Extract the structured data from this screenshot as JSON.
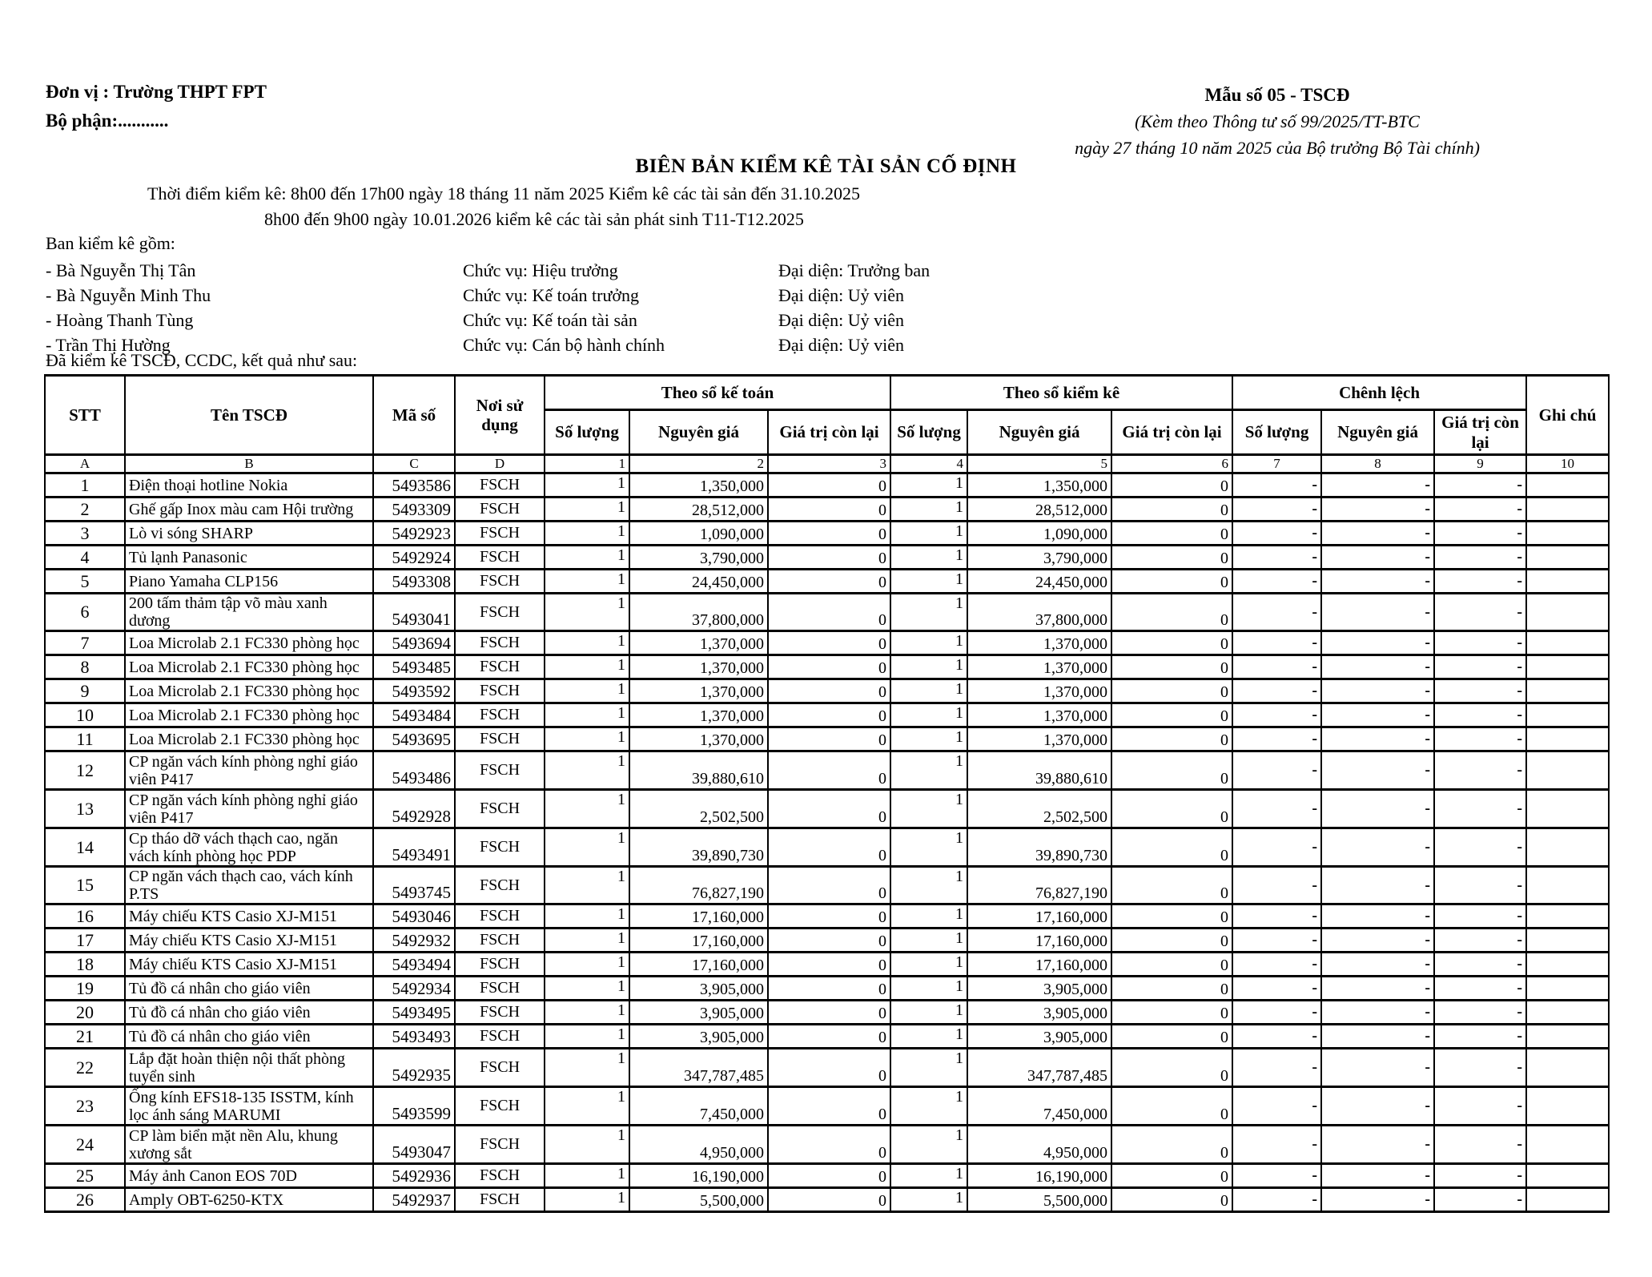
{
  "page": {
    "unit_label": "Đơn vị : Trường THPT FPT",
    "department_label": "Bộ phận:...........",
    "form_block": {
      "line1": "Mẫu số 05 - TSCĐ",
      "line2": "(Kèm theo Thông tư số 99/2025/TT-BTC",
      "line3": "ngày 27 tháng 10 năm 2025 của Bộ trưởng Bộ Tài chính)"
    },
    "title": "BIÊN BẢN KIỂM KÊ TÀI SẢN CỐ ĐỊNH",
    "time_line1": "Thời điểm kiểm kê: 8h00 đến 17h00 ngày 18 tháng 11 năm 2025 Kiểm kê các tài sản đến 31.10.2025",
    "time_line2": "8h00 đến 9h00 ngày 10.01.2026 kiểm kê các tài sản phát sinh T11-T12.2025",
    "committee_intro": "Ban kiểm kê gồm:",
    "committee": [
      {
        "name": "- Bà Nguyễn Thị Tân",
        "position": "Chức vụ: Hiệu trưởng",
        "role": "Đại diện: Trưởng ban"
      },
      {
        "name": "- Bà Nguyễn Minh Thu",
        "position": "Chức vụ: Kế toán trưởng",
        "role": "Đại diện: Uỷ viên"
      },
      {
        "name": "- Hoàng Thanh Tùng",
        "position": "Chức vụ: Kế toán tài sản",
        "role": "Đại diện: Uỷ viên"
      },
      {
        "name": "- Trần Thị Hường",
        "position": "Chức vụ: Cán bộ hành chính",
        "role": "Đại diện: Uỷ viên"
      }
    ],
    "result_intro": "Đã kiểm kê TSCĐ, CCDC, kết quả như sau:"
  },
  "table": {
    "headers": {
      "stt": "STT",
      "asset_name": "Tên TSCĐ",
      "code": "Mã số",
      "location": "Nơi sử dụng",
      "group_accounting": "Theo sổ kế toán",
      "group_inventory": "Theo sổ kiểm kê",
      "group_difference": "Chênh lệch",
      "quantity": "Số lượng",
      "original_cost": "Nguyên giá",
      "residual_value": "Giá trị còn lại",
      "residual_value_inv": "Giá trị  còn lại",
      "residual_value_diff": "Giá trị còn lại",
      "note": "Ghi chú"
    },
    "letter_row": [
      "A",
      "B",
      "C",
      "D",
      "1",
      "2",
      "3",
      "4",
      "5",
      "6",
      "7",
      "8",
      "9",
      "10"
    ],
    "rows": [
      {
        "stt": "1",
        "name": "Điện thoại hotline Nokia",
        "code": "5493586",
        "location": "FSCH",
        "acc_qty": "1",
        "acc_cost": "1,350,000",
        "acc_residual": "0",
        "inv_qty": "1",
        "inv_cost": "1,350,000",
        "inv_residual": "0",
        "diff_qty": "-",
        "diff_cost": "-",
        "diff_residual": "-",
        "note": "",
        "tall": false
      },
      {
        "stt": "2",
        "name": "Ghế gấp Inox màu cam Hội trường",
        "code": "5493309",
        "location": "FSCH",
        "acc_qty": "1",
        "acc_cost": "28,512,000",
        "acc_residual": "0",
        "inv_qty": "1",
        "inv_cost": "28,512,000",
        "inv_residual": "0",
        "diff_qty": "-",
        "diff_cost": "-",
        "diff_residual": "-",
        "note": "",
        "tall": false
      },
      {
        "stt": "3",
        "name": "Lò vi sóng SHARP",
        "code": "5492923",
        "location": "FSCH",
        "acc_qty": "1",
        "acc_cost": "1,090,000",
        "acc_residual": "0",
        "inv_qty": "1",
        "inv_cost": "1,090,000",
        "inv_residual": "0",
        "diff_qty": "-",
        "diff_cost": "-",
        "diff_residual": "-",
        "note": "",
        "tall": false
      },
      {
        "stt": "4",
        "name": "Tủ lạnh Panasonic",
        "code": "5492924",
        "location": "FSCH",
        "acc_qty": "1",
        "acc_cost": "3,790,000",
        "acc_residual": "0",
        "inv_qty": "1",
        "inv_cost": "3,790,000",
        "inv_residual": "0",
        "diff_qty": "-",
        "diff_cost": "-",
        "diff_residual": "-",
        "note": "",
        "tall": false
      },
      {
        "stt": "5",
        "name": "Piano Yamaha CLP156",
        "code": "5493308",
        "location": "FSCH",
        "acc_qty": "1",
        "acc_cost": "24,450,000",
        "acc_residual": "0",
        "inv_qty": "1",
        "inv_cost": "24,450,000",
        "inv_residual": "0",
        "diff_qty": "-",
        "diff_cost": "-",
        "diff_residual": "-",
        "note": "",
        "tall": false
      },
      {
        "stt": "6",
        "name": "200 tấm thảm tập võ màu xanh dương",
        "code": "5493041",
        "location": "FSCH",
        "acc_qty": "1",
        "acc_cost": "37,800,000",
        "acc_residual": "0",
        "inv_qty": "1",
        "inv_cost": "37,800,000",
        "inv_residual": "0",
        "diff_qty": "-",
        "diff_cost": "-",
        "diff_residual": "-",
        "note": "",
        "tall": false
      },
      {
        "stt": "7",
        "name": "Loa Microlab 2.1 FC330 phòng học",
        "code": "5493694",
        "location": "FSCH",
        "acc_qty": "1",
        "acc_cost": "1,370,000",
        "acc_residual": "0",
        "inv_qty": "1",
        "inv_cost": "1,370,000",
        "inv_residual": "0",
        "diff_qty": "-",
        "diff_cost": "-",
        "diff_residual": "-",
        "note": "",
        "tall": false
      },
      {
        "stt": "8",
        "name": "Loa Microlab 2.1 FC330 phòng học",
        "code": "5493485",
        "location": "FSCH",
        "acc_qty": "1",
        "acc_cost": "1,370,000",
        "acc_residual": "0",
        "inv_qty": "1",
        "inv_cost": "1,370,000",
        "inv_residual": "0",
        "diff_qty": "-",
        "diff_cost": "-",
        "diff_residual": "-",
        "note": "",
        "tall": false
      },
      {
        "stt": "9",
        "name": "Loa Microlab 2.1 FC330 phòng học",
        "code": "5493592",
        "location": "FSCH",
        "acc_qty": "1",
        "acc_cost": "1,370,000",
        "acc_residual": "0",
        "inv_qty": "1",
        "inv_cost": "1,370,000",
        "inv_residual": "0",
        "diff_qty": "-",
        "diff_cost": "-",
        "diff_residual": "-",
        "note": "",
        "tall": false
      },
      {
        "stt": "10",
        "name": "Loa Microlab 2.1 FC330 phòng học",
        "code": "5493484",
        "location": "FSCH",
        "acc_qty": "1",
        "acc_cost": "1,370,000",
        "acc_residual": "0",
        "inv_qty": "1",
        "inv_cost": "1,370,000",
        "inv_residual": "0",
        "diff_qty": "-",
        "diff_cost": "-",
        "diff_residual": "-",
        "note": "",
        "tall": false
      },
      {
        "stt": "11",
        "name": "Loa Microlab 2.1 FC330 phòng học",
        "code": "5493695",
        "location": "FSCH",
        "acc_qty": "1",
        "acc_cost": "1,370,000",
        "acc_residual": "0",
        "inv_qty": "1",
        "inv_cost": "1,370,000",
        "inv_residual": "0",
        "diff_qty": "-",
        "diff_cost": "-",
        "diff_residual": "-",
        "note": "",
        "tall": false
      },
      {
        "stt": "12",
        "name": "CP ngăn vách kính phòng nghỉ giáo viên P417",
        "code": "5493486",
        "location": "FSCH",
        "acc_qty": "1",
        "acc_cost": "39,880,610",
        "acc_residual": "0",
        "inv_qty": "1",
        "inv_cost": "39,880,610",
        "inv_residual": "0",
        "diff_qty": "-",
        "diff_cost": "-",
        "diff_residual": "-",
        "note": "",
        "tall": true
      },
      {
        "stt": "13",
        "name": "CP ngăn vách kính phòng nghỉ giáo viên P417",
        "code": "5492928",
        "location": "FSCH",
        "acc_qty": "1",
        "acc_cost": "2,502,500",
        "acc_residual": "0",
        "inv_qty": "1",
        "inv_cost": "2,502,500",
        "inv_residual": "0",
        "diff_qty": "-",
        "diff_cost": "-",
        "diff_residual": "-",
        "note": "",
        "tall": true
      },
      {
        "stt": "14",
        "name": "Cp tháo dỡ vách thạch cao, ngăn vách kính phòng học PDP",
        "code": "5493491",
        "location": "FSCH",
        "acc_qty": "1",
        "acc_cost": "39,890,730",
        "acc_residual": "0",
        "inv_qty": "1",
        "inv_cost": "39,890,730",
        "inv_residual": "0",
        "diff_qty": "-",
        "diff_cost": "-",
        "diff_residual": "-",
        "note": "",
        "tall": true
      },
      {
        "stt": "15",
        "name": "CP ngăn vách thạch cao, vách kính P.TS",
        "code": "5493745",
        "location": "FSCH",
        "acc_qty": "1",
        "acc_cost": "76,827,190",
        "acc_residual": "0",
        "inv_qty": "1",
        "inv_cost": "76,827,190",
        "inv_residual": "0",
        "diff_qty": "-",
        "diff_cost": "-",
        "diff_residual": "-",
        "note": "",
        "tall": false
      },
      {
        "stt": "16",
        "name": "Máy chiếu KTS Casio XJ-M151",
        "code": "5493046",
        "location": "FSCH",
        "acc_qty": "1",
        "acc_cost": "17,160,000",
        "acc_residual": "0",
        "inv_qty": "1",
        "inv_cost": "17,160,000",
        "inv_residual": "0",
        "diff_qty": "-",
        "diff_cost": "-",
        "diff_residual": "-",
        "note": "",
        "tall": false
      },
      {
        "stt": "17",
        "name": "Máy chiếu KTS Casio XJ-M151",
        "code": "5492932",
        "location": "FSCH",
        "acc_qty": "1",
        "acc_cost": "17,160,000",
        "acc_residual": "0",
        "inv_qty": "1",
        "inv_cost": "17,160,000",
        "inv_residual": "0",
        "diff_qty": "-",
        "diff_cost": "-",
        "diff_residual": "-",
        "note": "",
        "tall": false
      },
      {
        "stt": "18",
        "name": "Máy chiếu KTS Casio XJ-M151",
        "code": "5493494",
        "location": "FSCH",
        "acc_qty": "1",
        "acc_cost": "17,160,000",
        "acc_residual": "0",
        "inv_qty": "1",
        "inv_cost": "17,160,000",
        "inv_residual": "0",
        "diff_qty": "-",
        "diff_cost": "-",
        "diff_residual": "-",
        "note": "",
        "tall": false
      },
      {
        "stt": "19",
        "name": "Tủ đồ cá nhân cho giáo viên",
        "code": "5492934",
        "location": "FSCH",
        "acc_qty": "1",
        "acc_cost": "3,905,000",
        "acc_residual": "0",
        "inv_qty": "1",
        "inv_cost": "3,905,000",
        "inv_residual": "0",
        "diff_qty": "-",
        "diff_cost": "-",
        "diff_residual": "-",
        "note": "",
        "tall": false
      },
      {
        "stt": "20",
        "name": "Tủ đồ cá nhân cho giáo viên",
        "code": "5493495",
        "location": "FSCH",
        "acc_qty": "1",
        "acc_cost": "3,905,000",
        "acc_residual": "0",
        "inv_qty": "1",
        "inv_cost": "3,905,000",
        "inv_residual": "0",
        "diff_qty": "-",
        "diff_cost": "-",
        "diff_residual": "-",
        "note": "",
        "tall": false
      },
      {
        "stt": "21",
        "name": "Tủ đồ cá nhân cho giáo viên",
        "code": "5493493",
        "location": "FSCH",
        "acc_qty": "1",
        "acc_cost": "3,905,000",
        "acc_residual": "0",
        "inv_qty": "1",
        "inv_cost": "3,905,000",
        "inv_residual": "0",
        "diff_qty": "-",
        "diff_cost": "-",
        "diff_residual": "-",
        "note": "",
        "tall": false
      },
      {
        "stt": "22",
        "name": "Lắp đặt hoàn thiện nội thất phòng tuyển sinh",
        "code": "5492935",
        "location": "FSCH",
        "acc_qty": "1",
        "acc_cost": "347,787,485",
        "acc_residual": "0",
        "inv_qty": "1",
        "inv_cost": "347,787,485",
        "inv_residual": "0",
        "diff_qty": "-",
        "diff_cost": "-",
        "diff_residual": "-",
        "note": "",
        "tall": true
      },
      {
        "stt": "23",
        "name": "Ống kính EFS18-135 ISSTM, kính lọc ánh sáng MARUMI",
        "code": "5493599",
        "location": "FSCH",
        "acc_qty": "1",
        "acc_cost": "7,450,000",
        "acc_residual": "0",
        "inv_qty": "1",
        "inv_cost": "7,450,000",
        "inv_residual": "0",
        "diff_qty": "-",
        "diff_cost": "-",
        "diff_residual": "-",
        "note": "",
        "tall": true
      },
      {
        "stt": "24",
        "name": "CP làm biển mặt nền Alu, khung xương sắt",
        "code": "5493047",
        "location": "FSCH",
        "acc_qty": "1",
        "acc_cost": "4,950,000",
        "acc_residual": "0",
        "inv_qty": "1",
        "inv_cost": "4,950,000",
        "inv_residual": "0",
        "diff_qty": "-",
        "diff_cost": "-",
        "diff_residual": "-",
        "note": "",
        "tall": true
      },
      {
        "stt": "25",
        "name": "Máy ảnh Canon EOS 70D",
        "code": "5492936",
        "location": "FSCH",
        "acc_qty": "1",
        "acc_cost": "16,190,000",
        "acc_residual": "0",
        "inv_qty": "1",
        "inv_cost": "16,190,000",
        "inv_residual": "0",
        "diff_qty": "-",
        "diff_cost": "-",
        "diff_residual": "-",
        "note": "",
        "tall": false
      },
      {
        "stt": "26",
        "name": "Amply OBT-6250-KTX",
        "code": "5492937",
        "location": "FSCH",
        "acc_qty": "1",
        "acc_cost": "5,500,000",
        "acc_residual": "0",
        "inv_qty": "1",
        "inv_cost": "5,500,000",
        "inv_residual": "0",
        "diff_qty": "-",
        "diff_cost": "-",
        "diff_residual": "-",
        "note": "",
        "tall": false
      }
    ]
  }
}
